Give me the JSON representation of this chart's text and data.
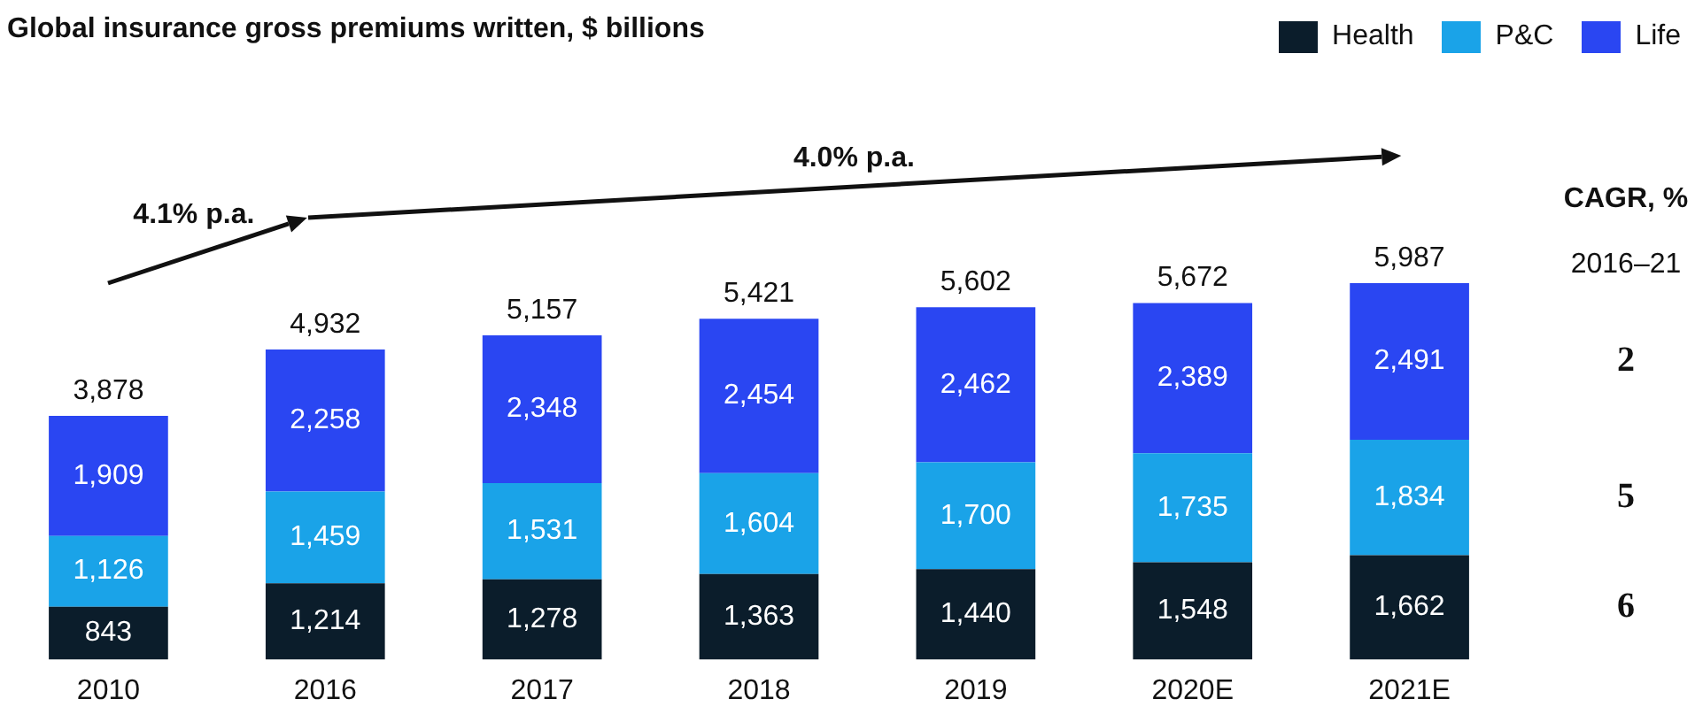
{
  "chart_data": {
    "type": "bar",
    "stacked": true,
    "title": "Global insurance gross premiums written, $ billions",
    "categories": [
      "2010",
      "2016",
      "2017",
      "2018",
      "2019",
      "2020E",
      "2021E"
    ],
    "series": [
      {
        "name": "Health",
        "color": "#0b1d2b",
        "values": [
          843,
          1214,
          1278,
          1363,
          1440,
          1548,
          1662
        ],
        "value_labels": [
          "843",
          "1,214",
          "1,278",
          "1,363",
          "1,440",
          "1,548",
          "1,662"
        ]
      },
      {
        "name": "P&C",
        "color": "#1aa3e8",
        "values": [
          1126,
          1459,
          1531,
          1604,
          1700,
          1735,
          1834
        ],
        "value_labels": [
          "1,126",
          "1,459",
          "1,531",
          "1,604",
          "1,700",
          "1,735",
          "1,834"
        ]
      },
      {
        "name": "Life",
        "color": "#2a46f2",
        "values": [
          1909,
          2258,
          2348,
          2454,
          2462,
          2389,
          2491
        ],
        "value_labels": [
          "1,909",
          "2,258",
          "2,348",
          "2,454",
          "2,462",
          "2,389",
          "2,491"
        ]
      }
    ],
    "totals": [
      "3,878",
      "4,932",
      "5,157",
      "5,421",
      "5,602",
      "5,672",
      "5,987"
    ],
    "legend": "top right",
    "grid": false,
    "tick_labels": "x",
    "annotations": [
      "4.1% p.a.",
      "4.0% p.a.",
      "CAGR, %",
      "2016–21",
      "2",
      "5",
      "6"
    ]
  }
}
